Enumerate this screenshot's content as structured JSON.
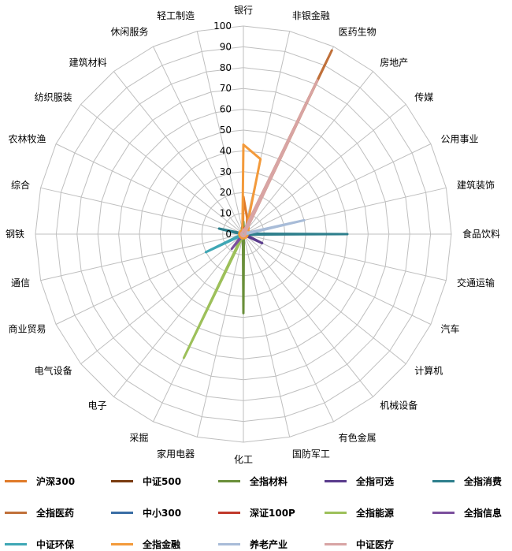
{
  "chart_data": {
    "type": "radar",
    "axes": [
      "银行",
      "非银金融",
      "医药生物",
      "房地产",
      "传媒",
      "公用事业",
      "建筑装饰",
      "食品饮料",
      "交通运输",
      "汽车",
      "计算机",
      "机械设备",
      "有色金属",
      "国防军工",
      "化工",
      "家用电器",
      "采掘",
      "电子",
      "电气设备",
      "商业贸易",
      "通信",
      "钢铁",
      "综合",
      "农林牧渔",
      "纺织服装",
      "建筑材料",
      "休闲服务",
      "轻工制造"
    ],
    "ticks": [
      "0",
      "10",
      "20",
      "30",
      "40",
      "50",
      "60",
      "70",
      "80",
      "90",
      "100"
    ],
    "range": [
      0,
      100
    ],
    "grid": true,
    "legend_position": "bottom",
    "series": [
      {
        "name": "沪深300",
        "color": "#e07b29",
        "values": [
          18,
          8,
          4,
          3,
          2,
          2,
          1,
          1,
          1,
          1,
          1,
          1,
          1,
          1,
          1,
          1,
          1,
          1,
          1,
          1,
          1,
          1,
          1,
          1,
          1,
          1,
          1,
          1
        ]
      },
      {
        "name": "中证500",
        "color": "#7a3b10",
        "values": [
          3,
          2,
          2,
          2,
          2,
          1,
          1,
          1,
          1,
          1,
          1,
          1,
          1,
          1,
          1,
          1,
          1,
          1,
          1,
          1,
          1,
          1,
          1,
          1,
          1,
          1,
          1,
          1
        ]
      },
      {
        "name": "全指材料",
        "color": "#6a8f3a",
        "values": [
          6,
          1,
          1,
          1,
          1,
          1,
          1,
          1,
          1,
          1,
          1,
          1,
          1,
          1,
          38,
          1,
          1,
          1,
          1,
          1,
          1,
          1,
          1,
          1,
          1,
          1,
          1,
          3
        ]
      },
      {
        "name": "全指可选",
        "color": "#5a3b8c",
        "values": [
          2,
          1,
          1,
          1,
          1,
          1,
          1,
          1,
          1,
          10,
          1,
          1,
          1,
          1,
          1,
          1,
          1,
          1,
          1,
          1,
          1,
          1,
          1,
          1,
          1,
          1,
          1,
          1
        ]
      },
      {
        "name": "全指消费",
        "color": "#2e7f8c",
        "values": [
          2,
          1,
          1,
          1,
          1,
          1,
          1,
          50,
          1,
          1,
          1,
          1,
          1,
          1,
          1,
          1,
          1,
          1,
          1,
          1,
          1,
          1,
          12,
          1,
          1,
          1,
          1,
          1
        ]
      },
      {
        "name": "全指医药",
        "color": "#c0703a",
        "values": [
          2,
          2,
          98,
          2,
          1,
          1,
          1,
          1,
          1,
          1,
          1,
          1,
          1,
          1,
          1,
          1,
          1,
          1,
          1,
          1,
          1,
          1,
          1,
          1,
          1,
          1,
          1,
          1
        ]
      },
      {
        "name": "中小300",
        "color": "#3a6ea5",
        "values": [
          2,
          2,
          2,
          1,
          1,
          1,
          1,
          1,
          1,
          1,
          1,
          1,
          1,
          1,
          1,
          1,
          1,
          1,
          1,
          1,
          1,
          1,
          1,
          1,
          1,
          1,
          1,
          1
        ]
      },
      {
        "name": "深证100P",
        "color": "#c0392b",
        "values": [
          3,
          2,
          3,
          2,
          1,
          1,
          1,
          1,
          1,
          1,
          1,
          1,
          1,
          1,
          1,
          1,
          1,
          1,
          1,
          1,
          1,
          1,
          1,
          1,
          1,
          1,
          1,
          1
        ]
      },
      {
        "name": "全指能源",
        "color": "#9dc05a",
        "values": [
          2,
          1,
          1,
          1,
          1,
          1,
          1,
          1,
          1,
          1,
          1,
          1,
          1,
          1,
          1,
          1,
          66,
          1,
          1,
          1,
          1,
          1,
          1,
          1,
          1,
          1,
          1,
          1
        ]
      },
      {
        "name": "全指信息",
        "color": "#7b4f9d",
        "values": [
          2,
          1,
          1,
          1,
          1,
          1,
          1,
          1,
          1,
          1,
          1,
          1,
          1,
          1,
          1,
          1,
          1,
          9,
          1,
          1,
          1,
          1,
          1,
          1,
          1,
          1,
          1,
          1
        ]
      },
      {
        "name": "中证环保",
        "color": "#3fa7b5",
        "values": [
          2,
          1,
          1,
          1,
          1,
          1,
          1,
          1,
          1,
          1,
          1,
          1,
          1,
          1,
          1,
          1,
          1,
          1,
          1,
          20,
          1,
          1,
          1,
          1,
          1,
          1,
          1,
          1
        ]
      },
      {
        "name": "全指金融",
        "color": "#f39a3b",
        "values": [
          43,
          37,
          4,
          4,
          3,
          3,
          3,
          2,
          2,
          2,
          2,
          2,
          2,
          2,
          2,
          2,
          2,
          2,
          2,
          2,
          2,
          2,
          2,
          2,
          2,
          2,
          2,
          2
        ]
      },
      {
        "name": "养老产业",
        "color": "#a8bcd8",
        "values": [
          2,
          2,
          3,
          2,
          2,
          1,
          30,
          1,
          1,
          1,
          1,
          1,
          1,
          1,
          1,
          1,
          1,
          1,
          1,
          1,
          1,
          1,
          1,
          1,
          1,
          1,
          1,
          1
        ]
      },
      {
        "name": "中证医疗",
        "color": "#d8a4a4",
        "values": [
          2,
          2,
          82,
          2,
          1,
          1,
          1,
          1,
          1,
          1,
          1,
          1,
          1,
          1,
          1,
          1,
          1,
          1,
          1,
          1,
          1,
          1,
          1,
          1,
          1,
          1,
          1,
          1
        ]
      }
    ]
  }
}
